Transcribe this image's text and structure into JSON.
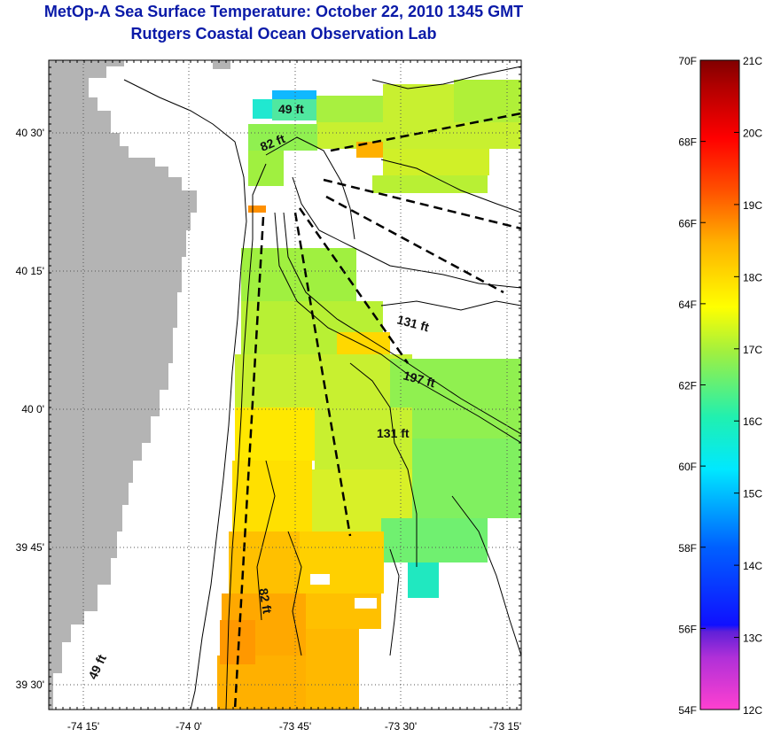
{
  "header": {
    "title": "MetOp-A Sea Surface Temperature:  October 22, 2010 1345 GMT",
    "subtitle": "Rutgers Coastal Ocean Observation Lab"
  },
  "map": {
    "lat_ticks": [
      "40 30'",
      "40 15'",
      "40 0'",
      "39 45'",
      "39 30'"
    ],
    "lon_ticks": [
      "-74 15'",
      "-74 0'",
      "-73 45'",
      "-73 30'",
      "-73 15'"
    ],
    "contour_labels": [
      "49 ft",
      "82 ft",
      "131 ft",
      "197 ft",
      "131 ft",
      "82 ft",
      "49 ft"
    ],
    "land_color": "#b4b4b4"
  },
  "colorbar": {
    "fahrenheit_labels": [
      "70F",
      "68F",
      "66F",
      "64F",
      "62F",
      "60F",
      "58F",
      "56F",
      "54F"
    ],
    "celsius_labels": [
      "21C",
      "20C",
      "19C",
      "18C",
      "17C",
      "16C",
      "15C",
      "14C",
      "13C",
      "12C"
    ],
    "colors": [
      "#ff40d0",
      "#7a30d0",
      "#1010ff",
      "#0090ff",
      "#00f0ff",
      "#20f0a0",
      "#a0f040",
      "#ffff00",
      "#ffb000",
      "#ff5000",
      "#ff0000",
      "#b00000",
      "#800000"
    ]
  }
}
